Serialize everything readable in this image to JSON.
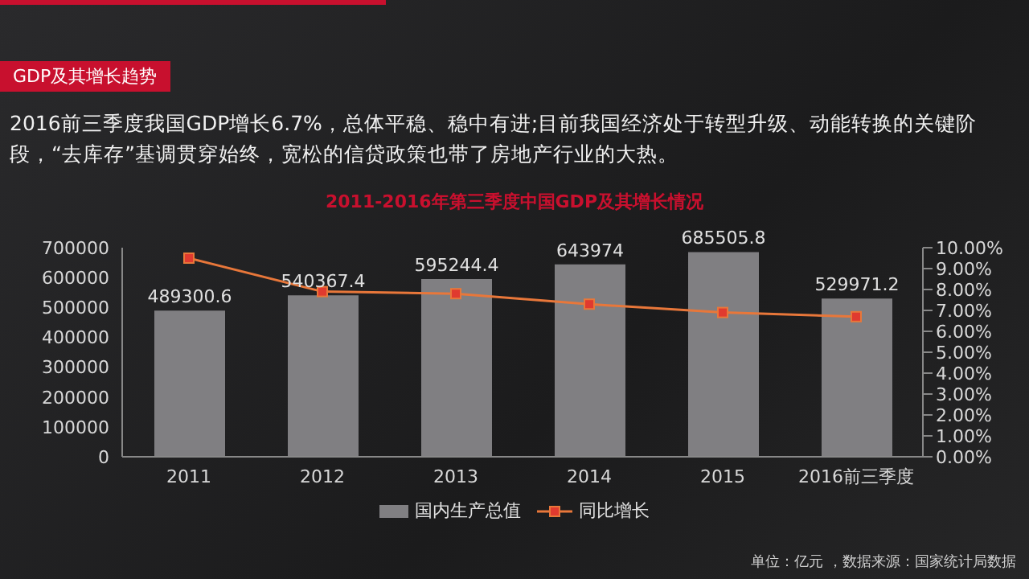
{
  "chart_data": {
    "type": "bar",
    "title": "2011-2016年第三季度中国GDP及其增长情况",
    "subtitle": "2016前三季度我国GDP增长6.7%，总体平稳、稳中有进;目前我国经济处于转型升级、动能转换的关键阶段，“去库存”基调贯穿始终，宽松的信贷政策也带了房地产行业的大热。",
    "annotations": [
      "GDP及其增长趋势",
      "单位：亿元 ，数据来源：国家统计局数据"
    ],
    "categories": [
      "2011",
      "2012",
      "2013",
      "2014",
      "2015",
      "2016前三季度"
    ],
    "series": [
      {
        "name": "国内生产总值",
        "color": "#807f82",
        "values": [
          489300.6,
          540367.4,
          595244.4,
          643974,
          685505.8,
          529971.2
        ],
        "value_labels": [
          "489300.6",
          "540367.4",
          "595244.4",
          "643974",
          "685505.8",
          "529971.2"
        ]
      },
      {
        "name": "同比增长",
        "type": "line",
        "axis": "y2",
        "color": "#e8773a",
        "values": [
          9.5,
          7.9,
          7.8,
          7.3,
          6.9,
          6.7
        ]
      }
    ],
    "ylim": [
      0,
      700000
    ],
    "yticks": [
      0,
      100000,
      200000,
      300000,
      400000,
      500000,
      600000,
      700000
    ],
    "y2lim": [
      0,
      10
    ],
    "y2ticks": [
      {
        "value": 0,
        "label": "0.00%"
      },
      {
        "value": 1,
        "label": "1.00%"
      },
      {
        "value": 2,
        "label": "2.00%"
      },
      {
        "value": 3,
        "label": "3.00%"
      },
      {
        "value": 4,
        "label": "4.00%"
      },
      {
        "value": 5,
        "label": "5.00%"
      },
      {
        "value": 6,
        "label": "6.00%"
      },
      {
        "value": 7,
        "label": "7.00%"
      },
      {
        "value": 8,
        "label": "8.00%"
      },
      {
        "value": 9,
        "label": "9.00%"
      },
      {
        "value": 10,
        "label": "10.00%"
      }
    ],
    "grid": false,
    "legend": "bottom",
    "marker": "square"
  }
}
